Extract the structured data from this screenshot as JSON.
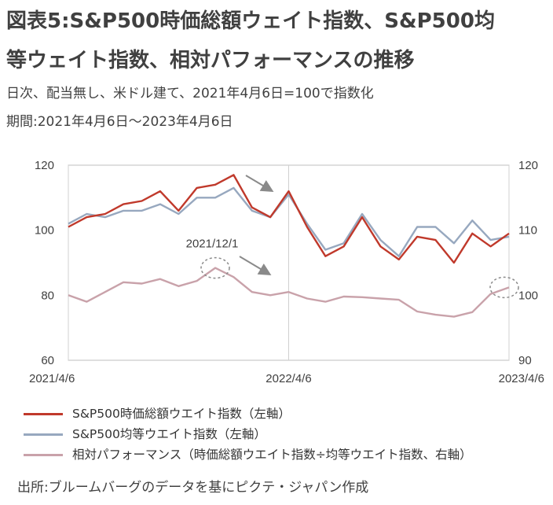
{
  "title_line1": "図表5:S&P500時価総額ウェイト指数、S&P500均",
  "title_line2": "等ウェイト指数、相対パフォーマンスの推移",
  "subtitle_line1": "日次、配当無し、米ドル建て、2021年4月6日=100で指数化",
  "subtitle_line2": "期間:2021年4月6日～2023年4月6日",
  "source": "出所:ブルームバーグのデータを基にピクテ・ジャパン作成",
  "chart_data": {
    "type": "line",
    "x": [
      "2021/4/6",
      "2021/5/6",
      "2021/6/6",
      "2021/7/6",
      "2021/8/6",
      "2021/9/6",
      "2021/10/6",
      "2021/11/6",
      "2021/12/1",
      "2022/1/3",
      "2022/2/6",
      "2022/3/6",
      "2022/4/6",
      "2022/5/6",
      "2022/6/6",
      "2022/7/6",
      "2022/8/6",
      "2022/9/6",
      "2022/10/6",
      "2022/11/6",
      "2022/12/6",
      "2023/1/6",
      "2023/2/6",
      "2023/3/6",
      "2023/4/6"
    ],
    "x_tick_labels": [
      "2021/4/6",
      "2022/4/6",
      "2023/4/6"
    ],
    "y_left": {
      "ticks": [
        "60",
        "80",
        "100",
        "120"
      ],
      "range": [
        60,
        120
      ]
    },
    "y_right": {
      "ticks": [
        "90",
        "100",
        "110",
        "120"
      ],
      "range": [
        90,
        120
      ]
    },
    "series": [
      {
        "name": "S&P500時価総額ウエイト指数（左軸）",
        "axis": "left",
        "color": "#c0392b",
        "values": [
          101,
          104,
          105,
          108,
          109,
          112,
          106,
          113,
          114,
          117,
          107,
          104,
          112,
          101,
          92,
          95,
          104,
          95,
          91,
          98,
          97,
          90,
          99,
          95,
          99
        ]
      },
      {
        "name": "S&P500均等ウエイト指数（左軸）",
        "axis": "left",
        "color": "#97a8bf",
        "values": [
          102,
          105,
          104,
          106,
          106,
          108,
          105,
          110,
          110,
          113,
          106,
          104,
          111,
          102,
          94,
          96,
          105,
          97,
          92,
          101,
          101,
          96,
          103,
          97,
          98
        ]
      },
      {
        "name": "相対パフォーマンス（時価総額ウエイト指数÷均等ウエイト指数、右軸）",
        "axis": "right",
        "color": "#c9a2aa",
        "values": [
          100.0,
          99.0,
          100.5,
          102.0,
          101.8,
          102.5,
          101.4,
          102.2,
          104.2,
          102.8,
          100.5,
          100.0,
          100.5,
          99.5,
          99.0,
          99.8,
          99.7,
          99.5,
          99.3,
          97.5,
          97.0,
          96.7,
          97.4,
          100.2,
          101.2
        ]
      }
    ],
    "annotations": [
      {
        "text": "2021/12/1"
      }
    ],
    "grid": "vertical-only"
  }
}
